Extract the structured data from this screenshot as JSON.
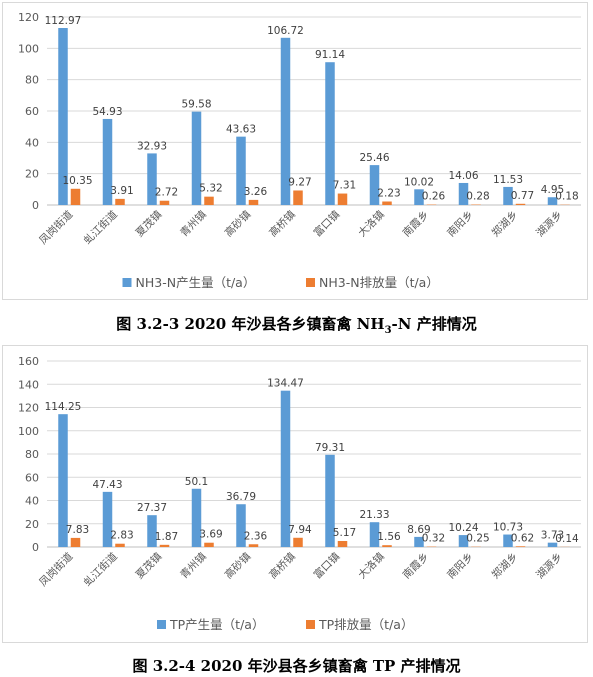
{
  "chart_data": [
    {
      "type": "bar",
      "categories": [
        "凤岗街道",
        "虬江街道",
        "夏茂镇",
        "青州镇",
        "高砂镇",
        "高桥镇",
        "富口镇",
        "大洛镇",
        "南霞乡",
        "南阳乡",
        "郑湖乡",
        "湖源乡"
      ],
      "series": [
        {
          "name": "NH3-N产生量（t/a）",
          "values": [
            112.97,
            54.93,
            32.93,
            59.58,
            43.63,
            106.72,
            91.14,
            25.46,
            10.02,
            14.06,
            11.53,
            4.95
          ]
        },
        {
          "name": "NH3-N排放量（t/a）",
          "values": [
            10.35,
            3.91,
            2.72,
            5.32,
            3.26,
            9.27,
            7.31,
            2.23,
            0.26,
            0.28,
            0.77,
            0.18
          ]
        }
      ],
      "ylim": [
        0,
        120
      ],
      "yticks": [
        0,
        20,
        40,
        60,
        80,
        100,
        120
      ],
      "grid": true,
      "legend": "bottom",
      "colors": [
        "#5B9BD5",
        "#ED7D31"
      ],
      "caption": "图 3.2-3 2020 年沙县各乡镇畜禽 NH3-N 产排情况"
    },
    {
      "type": "bar",
      "categories": [
        "凤岗街道",
        "虬江街道",
        "夏茂镇",
        "青州镇",
        "高砂镇",
        "高桥镇",
        "富口镇",
        "大洛镇",
        "南霞乡",
        "南阳乡",
        "郑湖乡",
        "湖源乡"
      ],
      "series": [
        {
          "name": "TP产生量（t/a）",
          "values": [
            114.25,
            47.43,
            27.37,
            50.1,
            36.79,
            134.47,
            79.31,
            21.33,
            8.69,
            10.24,
            10.73,
            3.73
          ]
        },
        {
          "name": "TP排放量（t/a）",
          "values": [
            7.83,
            2.83,
            1.87,
            3.69,
            2.36,
            7.94,
            5.17,
            1.56,
            0.32,
            0.25,
            0.62,
            0.14
          ]
        }
      ],
      "ylim": [
        0,
        160
      ],
      "yticks": [
        0,
        20,
        40,
        60,
        80,
        100,
        120,
        140,
        160
      ],
      "grid": true,
      "legend": "bottom",
      "colors": [
        "#5B9BD5",
        "#ED7D31"
      ],
      "caption": "图 3.2-4 2020 年沙县各乡镇畜禽 TP 产排情况"
    }
  ],
  "captions": {
    "fig1_prefix": "图 3.2-3 2020 年沙县各乡镇畜禽 NH",
    "fig1_sub": "3",
    "fig1_suffix": "-N 产排情况",
    "fig2": "图 3.2-4 2020 年沙县各乡镇畜禽 TP 产排情况"
  }
}
